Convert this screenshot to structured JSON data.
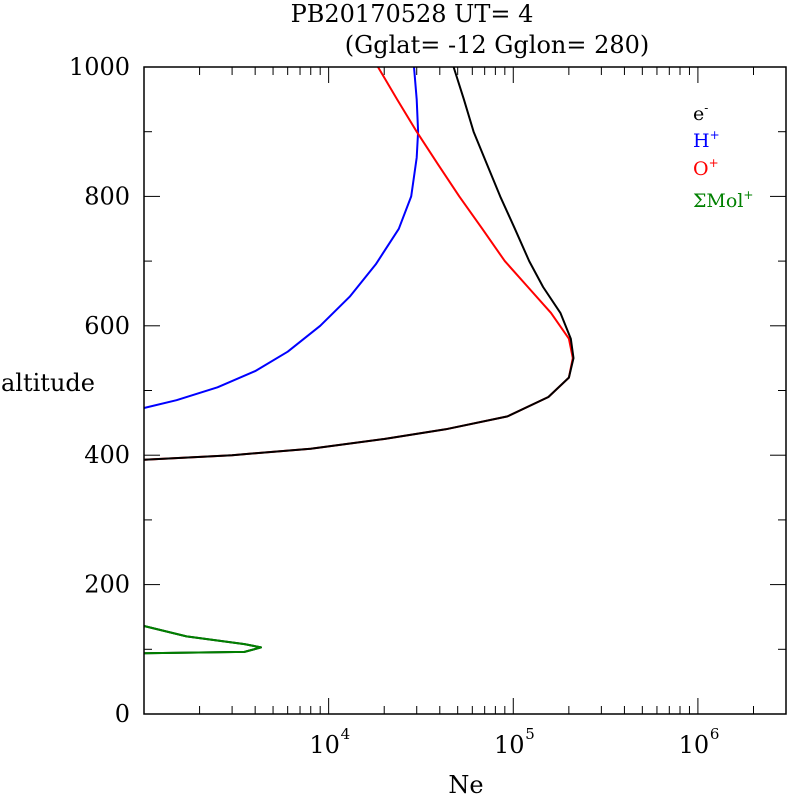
{
  "chart_data": {
    "type": "line",
    "title_line1": "PB20170528   UT=  4",
    "title_line2": "(Gglat= -12   Gglon=  280)",
    "xlabel": "Ne",
    "ylabel": "altitude",
    "x_scale": "log",
    "xlim": [
      1000,
      3000000
    ],
    "ylim": [
      0,
      1000
    ],
    "y_ticks": [
      0,
      200,
      400,
      600,
      800,
      1000
    ],
    "y_tick_labels": [
      "0",
      "200",
      "400",
      "600",
      "800",
      "1000"
    ],
    "x_tick_labels": [
      {
        "base": "10",
        "exp": "4",
        "value": 10000
      },
      {
        "base": "10",
        "exp": "5",
        "value": 100000
      },
      {
        "base": "10",
        "exp": "6",
        "value": 1000000
      }
    ],
    "legend": [
      {
        "base": "e",
        "sup": "-",
        "color": "#000000"
      },
      {
        "base": "H",
        "sup": "+",
        "color": "#0000ff"
      },
      {
        "base": "O",
        "sup": "+",
        "color": "#ff0000"
      },
      {
        "base": "ΣMol",
        "sup": "+",
        "color": "#008000"
      }
    ],
    "series": [
      {
        "name": "H+",
        "color": "#0000ff",
        "points": [
          [
            1000,
            473
          ],
          [
            1500,
            485
          ],
          [
            2500,
            505
          ],
          [
            4000,
            530
          ],
          [
            6000,
            560
          ],
          [
            9000,
            600
          ],
          [
            13000,
            645
          ],
          [
            18000,
            695
          ],
          [
            24000,
            750
          ],
          [
            28000,
            800
          ],
          [
            30000,
            860
          ],
          [
            30500,
            900
          ],
          [
            30000,
            950
          ],
          [
            29000,
            1000
          ]
        ]
      },
      {
        "name": "O+",
        "color": "#ff0000",
        "points": [
          [
            1000,
            393
          ],
          [
            3000,
            400
          ],
          [
            8000,
            410
          ],
          [
            20000,
            425
          ],
          [
            43000,
            440
          ],
          [
            93000,
            460
          ],
          [
            155000,
            490
          ],
          [
            200000,
            520
          ],
          [
            210000,
            550
          ],
          [
            200000,
            580
          ],
          [
            160000,
            620
          ],
          [
            120000,
            660
          ],
          [
            90000,
            700
          ],
          [
            68000,
            750
          ],
          [
            51000,
            800
          ],
          [
            39000,
            850
          ],
          [
            30000,
            900
          ],
          [
            23500,
            950
          ],
          [
            18500,
            1000
          ]
        ]
      },
      {
        "name": "e-",
        "color": "#000000",
        "points": [
          [
            1000,
            94
          ],
          [
            3500,
            96
          ],
          [
            4300,
            103
          ],
          [
            3500,
            108
          ],
          [
            1700,
            120
          ],
          [
            1000,
            136
          ]
        ]
      },
      {
        "name": "e-",
        "color": "#000000",
        "points": [
          [
            1000,
            393
          ],
          [
            3000,
            400
          ],
          [
            8000,
            410
          ],
          [
            20000,
            425
          ],
          [
            43000,
            440
          ],
          [
            93000,
            460
          ],
          [
            155000,
            490
          ],
          [
            200000,
            520
          ],
          [
            212000,
            550
          ],
          [
            205000,
            580
          ],
          [
            180000,
            620
          ],
          [
            145000,
            660
          ],
          [
            122000,
            700
          ],
          [
            102000,
            750
          ],
          [
            85000,
            800
          ],
          [
            72000,
            850
          ],
          [
            61000,
            900
          ],
          [
            54000,
            950
          ],
          [
            47500,
            1000
          ]
        ]
      },
      {
        "name": "ΣMol+",
        "color": "#008000",
        "points": [
          [
            1000,
            94
          ],
          [
            3500,
            96
          ],
          [
            4300,
            103
          ],
          [
            3500,
            108
          ],
          [
            1700,
            120
          ],
          [
            1000,
            136
          ]
        ]
      }
    ]
  }
}
